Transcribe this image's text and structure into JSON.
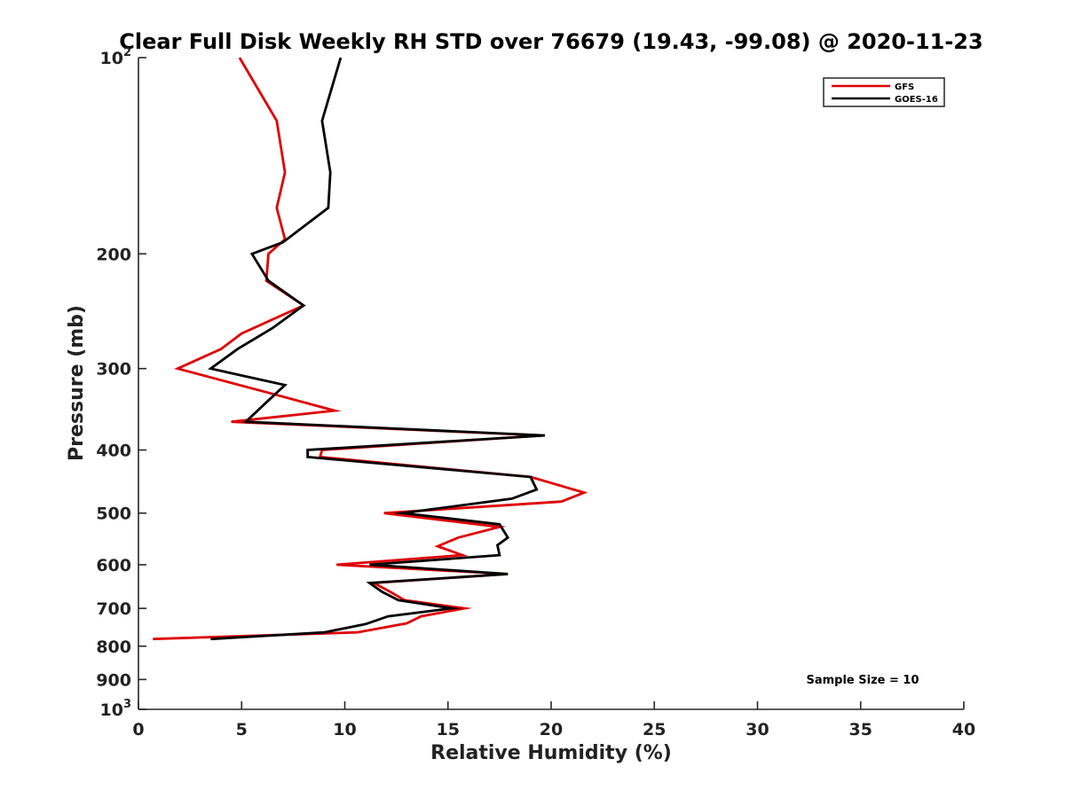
{
  "chart_data": {
    "type": "line",
    "title": "Clear Full Disk Weekly RH STD over 76679 (19.43, -99.08) @ 2020-11-23",
    "xlabel": "Relative Humidity (%)",
    "ylabel": "Pressure (mb)",
    "xlim": [
      0,
      40
    ],
    "ylim": [
      100,
      1000
    ],
    "y_scale": "log",
    "y_reversed": true,
    "x_ticks": [
      "0",
      "5",
      "10",
      "15",
      "20",
      "25",
      "30",
      "35",
      "40"
    ],
    "y_tick_values": [
      100,
      200,
      300,
      400,
      500,
      600,
      700,
      800,
      900,
      1000
    ],
    "y_ticks": [
      {
        "base": "10",
        "exp": "2"
      },
      {
        "base": "200",
        "exp": ""
      },
      {
        "base": "300",
        "exp": ""
      },
      {
        "base": "400",
        "exp": ""
      },
      {
        "base": "500",
        "exp": ""
      },
      {
        "base": "600",
        "exp": ""
      },
      {
        "base": "700",
        "exp": ""
      },
      {
        "base": "800",
        "exp": ""
      },
      {
        "base": "900",
        "exp": ""
      },
      {
        "base": "10",
        "exp": "3"
      }
    ],
    "grid": false,
    "legend_position": "top-right",
    "annotation": "Sample Size = 10",
    "series": [
      {
        "name": "GFS",
        "color": "#e00000",
        "points": [
          [
            4.9,
            100
          ],
          [
            6.7,
            125
          ],
          [
            7.1,
            150
          ],
          [
            6.7,
            170
          ],
          [
            7.1,
            190
          ],
          [
            6.3,
            200
          ],
          [
            6.2,
            220
          ],
          [
            8.0,
            240
          ],
          [
            5.0,
            265
          ],
          [
            4.0,
            280
          ],
          [
            1.9,
            300
          ],
          [
            6.5,
            328
          ],
          [
            9.5,
            348
          ],
          [
            4.5,
            362
          ],
          [
            19.6,
            380
          ],
          [
            8.9,
            400
          ],
          [
            8.8,
            410
          ],
          [
            19.0,
            440
          ],
          [
            21.6,
            465
          ],
          [
            20.5,
            480
          ],
          [
            11.9,
            500
          ],
          [
            17.5,
            525
          ],
          [
            15.5,
            545
          ],
          [
            14.5,
            562
          ],
          [
            15.7,
            580
          ],
          [
            9.6,
            600
          ],
          [
            17.9,
            620
          ],
          [
            11.4,
            640
          ],
          [
            12.2,
            660
          ],
          [
            12.9,
            680
          ],
          [
            15.8,
            700
          ],
          [
            13.7,
            720
          ],
          [
            13.0,
            738
          ],
          [
            10.6,
            762
          ],
          [
            0.7,
            780
          ]
        ]
      },
      {
        "name": "GOES-16",
        "color": "#000000",
        "points": [
          [
            9.8,
            100
          ],
          [
            8.9,
            125
          ],
          [
            9.3,
            150
          ],
          [
            9.2,
            170
          ],
          [
            7.0,
            192
          ],
          [
            5.5,
            200
          ],
          [
            6.3,
            220
          ],
          [
            8.0,
            240
          ],
          [
            6.5,
            260
          ],
          [
            4.8,
            280
          ],
          [
            3.5,
            300
          ],
          [
            7.1,
            318
          ],
          [
            6.2,
            338
          ],
          [
            5.2,
            362
          ],
          [
            19.7,
            380
          ],
          [
            8.2,
            400
          ],
          [
            8.2,
            410
          ],
          [
            19.0,
            440
          ],
          [
            19.3,
            460
          ],
          [
            18.1,
            475
          ],
          [
            12.8,
            500
          ],
          [
            17.5,
            520
          ],
          [
            17.9,
            545
          ],
          [
            17.4,
            560
          ],
          [
            17.5,
            580
          ],
          [
            11.2,
            600
          ],
          [
            17.9,
            620
          ],
          [
            11.2,
            640
          ],
          [
            11.8,
            660
          ],
          [
            12.6,
            680
          ],
          [
            15.2,
            700
          ],
          [
            12.1,
            720
          ],
          [
            11.0,
            740
          ],
          [
            9.0,
            762
          ],
          [
            3.5,
            780
          ]
        ]
      }
    ]
  }
}
